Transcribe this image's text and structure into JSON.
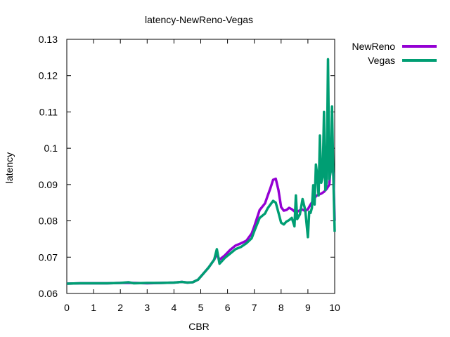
{
  "chart_data": {
    "type": "line",
    "title": "latency-NewReno-Vegas",
    "xlabel": "CBR",
    "ylabel": "latency",
    "xlim": [
      0,
      10
    ],
    "ylim": [
      0.06,
      0.13
    ],
    "xticks": [
      "0",
      "1",
      "2",
      "3",
      "4",
      "5",
      "6",
      "7",
      "8",
      "9",
      "10"
    ],
    "yticks": [
      "0.06",
      "0.07",
      "0.08",
      "0.09",
      "0.1",
      "0.11",
      "0.12",
      "0.13"
    ],
    "grid": false,
    "legend_position": "top-right, outside plot",
    "series": [
      {
        "name": "NewReno",
        "color": "#9400d3",
        "x": [
          0,
          0.5,
          1,
          1.5,
          2,
          2.5,
          3,
          3.5,
          4,
          4.3,
          4.5,
          4.7,
          4.9,
          5.1,
          5.3,
          5.5,
          5.6,
          5.7,
          5.9,
          6.1,
          6.3,
          6.5,
          6.7,
          6.9,
          7.0,
          7.2,
          7.4,
          7.5,
          7.6,
          7.7,
          7.8,
          7.9,
          8.0,
          8.1,
          8.2,
          8.3,
          8.4,
          8.5,
          8.6,
          8.7,
          8.8,
          8.9,
          9.0,
          9.1,
          9.2,
          9.3,
          9.4,
          9.5,
          9.6,
          9.7,
          9.8,
          9.85,
          9.9,
          9.95,
          10.0
        ],
        "y": [
          0.0627,
          0.0628,
          0.0628,
          0.0628,
          0.0629,
          0.0629,
          0.0628,
          0.0629,
          0.063,
          0.0632,
          0.063,
          0.0631,
          0.0638,
          0.0655,
          0.0672,
          0.0693,
          0.0708,
          0.0693,
          0.0705,
          0.072,
          0.0732,
          0.0738,
          0.0745,
          0.0765,
          0.0785,
          0.083,
          0.0848,
          0.087,
          0.089,
          0.0913,
          0.0916,
          0.0885,
          0.0838,
          0.0828,
          0.083,
          0.0836,
          0.0832,
          0.0826,
          0.0825,
          0.0829,
          0.0831,
          0.0827,
          0.0832,
          0.0845,
          0.0856,
          0.0868,
          0.0872,
          0.0875,
          0.088,
          0.0888,
          0.09,
          0.095,
          0.0965,
          0.093,
          0.08
        ]
      },
      {
        "name": "Vegas",
        "color": "#009e73",
        "x": [
          0,
          0.5,
          1,
          1.5,
          2,
          2.3,
          2.5,
          3,
          3.5,
          4,
          4.3,
          4.5,
          4.7,
          4.9,
          5.1,
          5.3,
          5.5,
          5.6,
          5.7,
          5.9,
          6.1,
          6.3,
          6.5,
          6.7,
          6.9,
          7.0,
          7.2,
          7.4,
          7.5,
          7.6,
          7.7,
          7.8,
          7.9,
          8.0,
          8.1,
          8.2,
          8.3,
          8.4,
          8.5,
          8.55,
          8.6,
          8.7,
          8.8,
          8.9,
          9.0,
          9.05,
          9.1,
          9.15,
          9.2,
          9.25,
          9.3,
          9.35,
          9.4,
          9.45,
          9.5,
          9.55,
          9.6,
          9.65,
          9.7,
          9.75,
          9.8,
          9.85,
          9.9,
          9.95,
          10.0
        ],
        "y": [
          0.0627,
          0.0628,
          0.0628,
          0.0628,
          0.0629,
          0.0631,
          0.0628,
          0.0629,
          0.0629,
          0.063,
          0.0632,
          0.063,
          0.0631,
          0.0638,
          0.0655,
          0.0672,
          0.0693,
          0.0722,
          0.0682,
          0.0698,
          0.071,
          0.0722,
          0.0728,
          0.0738,
          0.0752,
          0.0772,
          0.0808,
          0.082,
          0.0835,
          0.0845,
          0.0855,
          0.085,
          0.0823,
          0.0795,
          0.079,
          0.0798,
          0.0802,
          0.0808,
          0.0785,
          0.087,
          0.0805,
          0.0818,
          0.086,
          0.083,
          0.0755,
          0.0825,
          0.0822,
          0.0836,
          0.0898,
          0.0845,
          0.0955,
          0.0925,
          0.087,
          0.1035,
          0.0905,
          0.092,
          0.11,
          0.0885,
          0.0906,
          0.1245,
          0.0915,
          0.0935,
          0.1115,
          0.092,
          0.077
        ]
      }
    ]
  }
}
